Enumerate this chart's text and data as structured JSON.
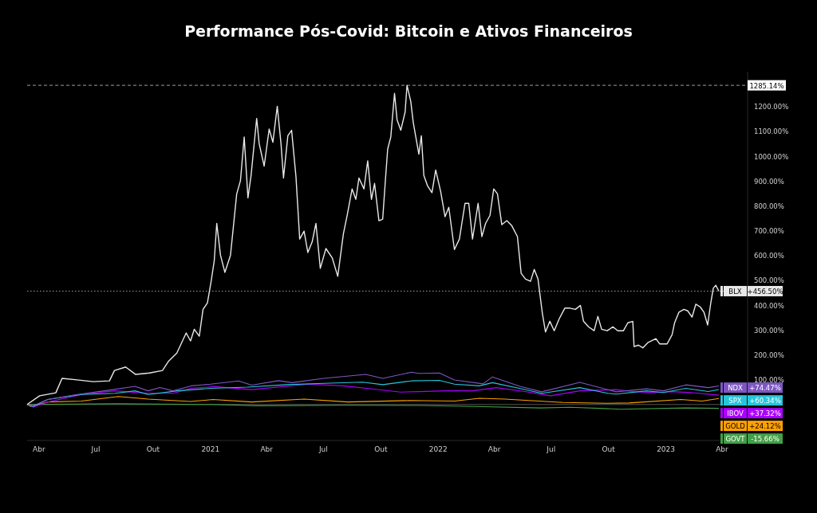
{
  "chart_data": {
    "type": "line",
    "title": "Performance Pós-Covid: Bitcoin e Ativos Financeiros",
    "xlim": [
      "2020-03-13",
      "2023-05-12"
    ],
    "xticks": [
      {
        "value": "2020-04-01",
        "label": "Abr"
      },
      {
        "value": "2020-07-01",
        "label": "Jul"
      },
      {
        "value": "2020-10-01",
        "label": "Out"
      },
      {
        "value": "2021-01-01",
        "label": "2021"
      },
      {
        "value": "2021-04-01",
        "label": "Abr"
      },
      {
        "value": "2021-07-01",
        "label": "Jul"
      },
      {
        "value": "2021-10-01",
        "label": "Out"
      },
      {
        "value": "2022-01-01",
        "label": "2022"
      },
      {
        "value": "2022-04-01",
        "label": "Abr"
      },
      {
        "value": "2022-07-01",
        "label": "Jul"
      },
      {
        "value": "2022-10-01",
        "label": "Out"
      },
      {
        "value": "2023-01-01",
        "label": "2023"
      },
      {
        "value": "2023-04-01",
        "label": "Abr"
      }
    ],
    "ylim": [
      -145,
      1340
    ],
    "yticks": [
      {
        "value": 100,
        "label": "100.00%"
      },
      {
        "value": 200,
        "label": "200.00%"
      },
      {
        "value": 300,
        "label": "300.00%"
      },
      {
        "value": 400,
        "label": "400.00%"
      },
      {
        "value": 500,
        "label": "500.00%"
      },
      {
        "value": 600,
        "label": "600.00%"
      },
      {
        "value": 700,
        "label": "700.00%"
      },
      {
        "value": 800,
        "label": "800.00%"
      },
      {
        "value": 900,
        "label": "900.00%"
      },
      {
        "value": 1000,
        "label": "1000.00%"
      },
      {
        "value": 1100,
        "label": "1100.00%"
      },
      {
        "value": 1200,
        "label": "1200.00%"
      }
    ],
    "grid": false,
    "legend": "right",
    "series": [
      {
        "name": "BLX",
        "color": "#e8e8e8",
        "x": [
          "2020-03-13",
          "2020-04-02",
          "2020-04-28",
          "2020-05-08",
          "2020-06-01",
          "2020-06-27",
          "2020-07-23",
          "2020-07-31",
          "2020-08-18",
          "2020-09-03",
          "2020-09-25",
          "2020-10-16",
          "2020-10-26",
          "2020-11-08",
          "2020-11-23",
          "2020-11-30",
          "2020-12-06",
          "2020-12-14",
          "2020-12-20",
          "2020-12-27",
          "2021-01-02",
          "2021-01-07",
          "2021-01-11",
          "2021-01-17",
          "2021-01-24",
          "2021-02-02",
          "2021-02-12",
          "2021-02-18",
          "2021-02-24",
          "2021-03-02",
          "2021-03-07",
          "2021-03-16",
          "2021-03-20",
          "2021-03-28",
          "2021-04-05",
          "2021-04-11",
          "2021-04-18",
          "2021-04-24",
          "2021-04-28",
          "2021-05-05",
          "2021-05-11",
          "2021-05-18",
          "2021-05-24",
          "2021-05-31",
          "2021-06-06",
          "2021-06-13",
          "2021-06-19",
          "2021-06-26",
          "2021-07-05",
          "2021-07-15",
          "2021-07-24",
          "2021-08-02",
          "2021-08-08",
          "2021-08-16",
          "2021-08-22",
          "2021-08-27",
          "2021-09-04",
          "2021-09-10",
          "2021-09-16",
          "2021-09-21",
          "2021-09-28",
          "2021-10-04",
          "2021-10-08",
          "2021-10-12",
          "2021-10-17",
          "2021-10-23",
          "2021-10-27",
          "2021-11-02",
          "2021-11-09",
          "2021-11-12",
          "2021-11-18",
          "2021-11-22",
          "2021-12-01",
          "2021-12-05",
          "2021-12-09",
          "2021-12-15",
          "2021-12-22",
          "2021-12-28",
          "2022-01-05",
          "2022-01-12",
          "2022-01-18",
          "2022-01-27",
          "2022-02-04",
          "2022-02-13",
          "2022-02-19",
          "2022-02-25",
          "2022-03-06",
          "2022-03-12",
          "2022-03-18",
          "2022-03-25",
          "2022-03-31",
          "2022-04-06",
          "2022-04-13",
          "2022-04-21",
          "2022-04-29",
          "2022-05-08",
          "2022-05-14",
          "2022-05-21",
          "2022-05-29",
          "2022-06-04",
          "2022-06-10",
          "2022-06-17",
          "2022-06-22",
          "2022-06-29",
          "2022-07-06",
          "2022-07-14",
          "2022-07-23",
          "2022-07-31",
          "2022-08-09",
          "2022-08-17",
          "2022-08-22",
          "2022-08-30",
          "2022-09-08",
          "2022-09-14",
          "2022-09-20",
          "2022-09-29",
          "2022-10-08",
          "2022-10-16",
          "2022-10-25",
          "2022-11-01",
          "2022-11-09",
          "2022-11-11",
          "2022-11-18",
          "2022-11-25",
          "2022-12-03",
          "2022-12-16",
          "2022-12-22",
          "2023-01-03",
          "2023-01-11",
          "2023-01-15",
          "2023-01-22",
          "2023-01-30",
          "2023-02-05",
          "2023-02-12",
          "2023-02-18",
          "2023-02-25",
          "2023-03-03",
          "2023-03-09",
          "2023-03-14",
          "2023-03-18",
          "2023-03-22",
          "2023-03-27"
        ],
        "values": [
          0,
          35,
          47,
          105,
          99,
          92,
          95,
          137,
          151,
          121,
          127,
          137,
          175,
          207,
          288,
          256,
          303,
          275,
          383,
          409,
          496,
          579,
          729,
          601,
          532,
          601,
          848,
          901,
          1077,
          832,
          922,
          1152,
          1050,
          960,
          1109,
          1056,
          1201,
          1050,
          912,
          1082,
          1104,
          917,
          666,
          698,
          612,
          655,
          729,
          548,
          628,
          591,
          516,
          687,
          761,
          868,
          826,
          912,
          868,
          981,
          826,
          890,
          740,
          746,
          890,
          1028,
          1077,
          1253,
          1147,
          1104,
          1178,
          1285.14,
          1221,
          1136,
          1008,
          1082,
          922,
          880,
          853,
          944,
          857,
          756,
          794,
          624,
          666,
          810,
          810,
          666,
          810,
          676,
          729,
          761,
          868,
          848,
          724,
          740,
          720,
          676,
          528,
          505,
          496,
          544,
          505,
          367,
          292,
          335,
          297,
          345,
          388,
          388,
          383,
          399,
          335,
          313,
          297,
          355,
          303,
          297,
          313,
          297,
          297,
          329,
          335,
          233,
          239,
          228,
          249,
          265,
          244,
          244,
          281,
          329,
          372,
          383,
          377,
          352,
          404,
          393,
          372,
          320,
          409,
          468,
          480,
          456.5
        ]
      },
      {
        "name": "NDX",
        "color": "#7e57c2",
        "x": [
          "2020-03-13",
          "2020-03-23",
          "2020-04-15",
          "2020-06-01",
          "2020-07-15",
          "2020-09-02",
          "2020-09-23",
          "2020-10-12",
          "2020-11-02",
          "2020-12-01",
          "2021-01-01",
          "2021-02-15",
          "2021-03-08",
          "2021-04-20",
          "2021-05-12",
          "2021-07-01",
          "2021-09-07",
          "2021-10-04",
          "2021-11-19",
          "2021-12-01",
          "2022-01-03",
          "2022-01-27",
          "2022-03-14",
          "2022-03-29",
          "2022-05-12",
          "2022-06-16",
          "2022-08-16",
          "2022-10-13",
          "2022-12-01",
          "2022-12-28",
          "2023-02-02",
          "2023-03-10",
          "2023-03-27"
        ],
        "values": [
          0,
          -5,
          20,
          40,
          55,
          73,
          55,
          68,
          55,
          75,
          82,
          95,
          78,
          96,
          88,
          105,
          121,
          105,
          130,
          125,
          127,
          99,
          83,
          111,
          73,
          51,
          89,
          51,
          63,
          55,
          79,
          68,
          74.47
        ]
      },
      {
        "name": "SPX",
        "color": "#26c6da",
        "x": [
          "2020-03-13",
          "2020-03-23",
          "2020-04-15",
          "2020-06-08",
          "2020-08-01",
          "2020-09-02",
          "2020-09-23",
          "2020-11-09",
          "2021-01-01",
          "2021-03-01",
          "2021-05-03",
          "2021-07-01",
          "2021-09-02",
          "2021-10-04",
          "2021-11-19",
          "2022-01-03",
          "2022-01-27",
          "2022-03-08",
          "2022-03-29",
          "2022-05-20",
          "2022-06-16",
          "2022-08-16",
          "2022-09-30",
          "2022-10-13",
          "2022-12-01",
          "2022-12-28",
          "2023-02-02",
          "2023-03-10",
          "2023-03-27"
        ],
        "values": [
          0,
          -8,
          20,
          40,
          45,
          55,
          40,
          55,
          65,
          70,
          80,
          85,
          90,
          80,
          95,
          97,
          82,
          75,
          88,
          60,
          45,
          68,
          45,
          42,
          55,
          48,
          65,
          52,
          60.34
        ]
      },
      {
        "name": "IBOV",
        "color": "#aa00ff",
        "x": [
          "2020-03-13",
          "2020-03-23",
          "2020-04-15",
          "2020-06-08",
          "2020-07-31",
          "2020-09-23",
          "2020-11-02",
          "2020-12-01",
          "2021-01-08",
          "2021-03-08",
          "2021-06-07",
          "2021-08-02",
          "2021-09-20",
          "2021-11-02",
          "2021-12-01",
          "2022-01-12",
          "2022-02-25",
          "2022-04-04",
          "2022-05-20",
          "2022-06-30",
          "2022-08-16",
          "2022-10-13",
          "2022-11-09",
          "2022-12-16",
          "2023-01-11",
          "2023-02-10",
          "2023-03-27"
        ],
        "values": [
          0,
          -10,
          10,
          40,
          55,
          45,
          45,
          65,
          72,
          60,
          82,
          75,
          62,
          50,
          52,
          55,
          55,
          68,
          52,
          35,
          55,
          60,
          52,
          48,
          52,
          48,
          37.32
        ]
      },
      {
        "name": "GOLD",
        "color": "#ffa000",
        "x": [
          "2020-03-13",
          "2020-03-19",
          "2020-04-15",
          "2020-06-08",
          "2020-08-06",
          "2020-09-23",
          "2020-11-30",
          "2021-01-05",
          "2021-03-08",
          "2021-05-31",
          "2021-08-09",
          "2021-11-16",
          "2022-01-27",
          "2022-03-08",
          "2022-04-18",
          "2022-07-20",
          "2022-09-27",
          "2022-11-03",
          "2023-01-25",
          "2023-02-28",
          "2023-03-27"
        ],
        "values": [
          0,
          -8,
          10,
          14,
          32,
          22,
          12,
          20,
          10,
          22,
          10,
          16,
          14,
          25,
          22,
          8,
          5,
          6,
          20,
          14,
          24.12
        ]
      },
      {
        "name": "GOVT",
        "color": "#43a047",
        "x": [
          "2020-03-13",
          "2020-08-04",
          "2021-01-04",
          "2021-03-19",
          "2021-08-04",
          "2021-12-01",
          "2022-03-01",
          "2022-06-14",
          "2022-08-01",
          "2022-10-21",
          "2023-02-01",
          "2023-03-27"
        ],
        "values": [
          0,
          3,
          0,
          -5,
          -3,
          -4,
          -8,
          -14,
          -11,
          -19,
          -14,
          -15.66
        ]
      }
    ],
    "ref_lines": [
      {
        "axis": "y",
        "value": 1285.14,
        "label": "1285.14%",
        "color": "#9e9e9e",
        "line_style": "dashed"
      },
      {
        "axis": "y",
        "value": 456.5,
        "color": "#9e9e9e",
        "line_style": "dotted"
      },
      {
        "axis": "y",
        "value": 0,
        "color": "#555555",
        "line_style": "solid"
      }
    ],
    "annotations": [
      "+456.50%",
      "+74.47%",
      "+60.34%",
      "+37.32%",
      "+24.12%",
      "-15.66%"
    ]
  }
}
